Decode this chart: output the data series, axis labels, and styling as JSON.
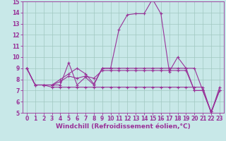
{
  "xlabel": "Windchill (Refroidissement éolien,°C)",
  "background_color": "#c8e8e8",
  "grid_color": "#a0c8c0",
  "line_color": "#993399",
  "xlim": [
    -0.5,
    23.5
  ],
  "ylim": [
    5,
    15
  ],
  "xticks": [
    0,
    1,
    2,
    3,
    4,
    5,
    6,
    7,
    8,
    9,
    10,
    11,
    12,
    13,
    14,
    15,
    16,
    17,
    18,
    19,
    20,
    21,
    22,
    23
  ],
  "yticks": [
    5,
    6,
    7,
    8,
    9,
    10,
    11,
    12,
    13,
    14,
    15
  ],
  "line1_y": [
    9.0,
    7.5,
    7.5,
    7.5,
    7.5,
    9.5,
    7.5,
    8.2,
    7.5,
    9.0,
    9.0,
    12.5,
    13.8,
    13.9,
    13.9,
    15.2,
    13.9,
    8.7,
    10.0,
    9.0,
    9.0,
    7.0,
    5.1,
    7.0
  ],
  "line2_y": [
    9.0,
    7.5,
    7.5,
    7.5,
    7.8,
    8.3,
    8.1,
    8.3,
    8.1,
    8.8,
    8.8,
    8.8,
    8.8,
    8.8,
    8.8,
    8.8,
    8.8,
    8.8,
    8.8,
    8.8,
    7.0,
    7.0,
    5.1,
    7.0
  ],
  "line3_y": [
    9.0,
    7.5,
    7.5,
    7.3,
    7.3,
    7.3,
    7.3,
    7.3,
    7.3,
    7.3,
    7.3,
    7.3,
    7.3,
    7.3,
    7.3,
    7.3,
    7.3,
    7.3,
    7.3,
    7.3,
    7.3,
    7.3,
    5.0,
    7.3
  ],
  "line4_y": [
    9.0,
    7.5,
    7.5,
    7.5,
    8.0,
    8.5,
    9.0,
    8.5,
    7.6,
    9.0,
    9.0,
    9.0,
    9.0,
    9.0,
    9.0,
    9.0,
    9.0,
    9.0,
    9.0,
    9.0,
    7.0,
    7.0,
    5.0,
    7.0
  ],
  "marker_size": 2.5,
  "line_width": 0.8,
  "xlabel_fontsize": 6.5,
  "tick_fontsize": 5.5
}
